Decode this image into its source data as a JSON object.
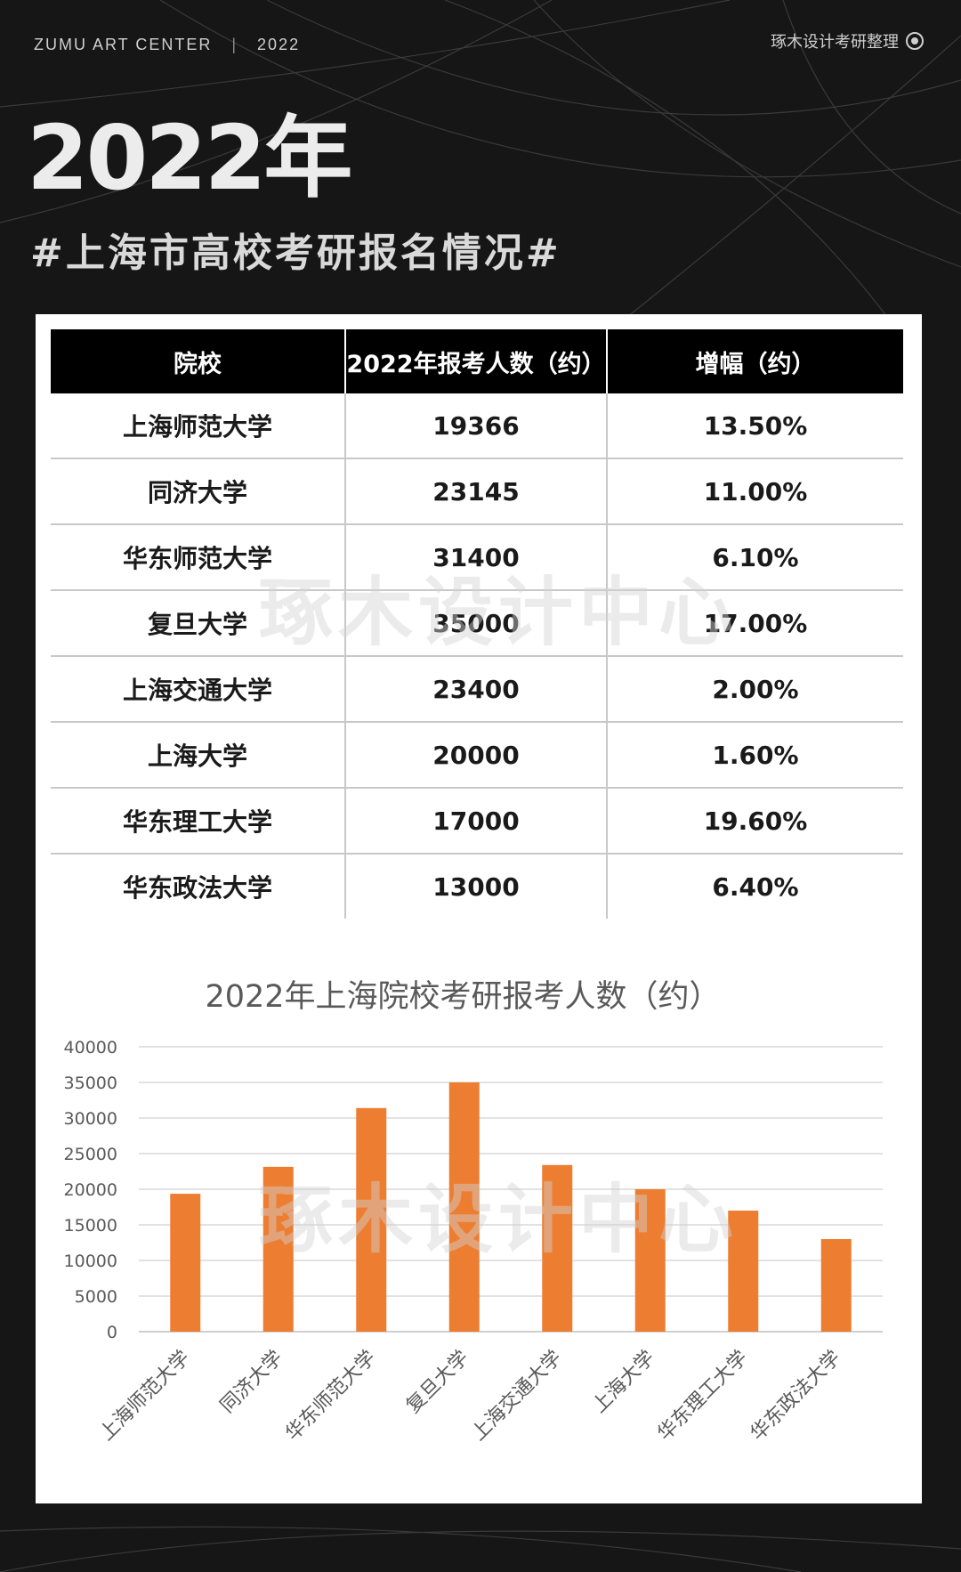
{
  "header": {
    "brand": "ZUMU ART CENTER",
    "separator": "|",
    "year": "2022",
    "organizer": "琢木设计考研整理",
    "headline": "2022年",
    "subtitle": "#上海市高校考研报名情况#"
  },
  "table": {
    "columns": [
      "院校",
      "2022年报考人数（约）",
      "增幅（约）"
    ],
    "rows": [
      {
        "school": "上海师范大学",
        "applicants": "19366",
        "growth": "13.50%"
      },
      {
        "school": "同济大学",
        "applicants": "23145",
        "growth": "11.00%"
      },
      {
        "school": "华东师范大学",
        "applicants": "31400",
        "growth": "6.10%"
      },
      {
        "school": "复旦大学",
        "applicants": "35000",
        "growth": "17.00%"
      },
      {
        "school": "上海交通大学",
        "applicants": "23400",
        "growth": "2.00%"
      },
      {
        "school": "上海大学",
        "applicants": "20000",
        "growth": "1.60%"
      },
      {
        "school": "华东理工大学",
        "applicants": "17000",
        "growth": "19.60%"
      },
      {
        "school": "华东政法大学",
        "applicants": "13000",
        "growth": "6.40%"
      }
    ]
  },
  "watermark": "琢木设计中心",
  "chart_data": {
    "type": "bar",
    "title": "2022年上海院校考研报考人数（约）",
    "xlabel": "",
    "ylabel": "",
    "categories": [
      "上海师范大学",
      "同济大学",
      "华东师范大学",
      "复旦大学",
      "上海交通大学",
      "上海大学",
      "华东理工大学",
      "华东政法大学"
    ],
    "values": [
      19366,
      23145,
      31400,
      35000,
      23400,
      20000,
      17000,
      13000
    ],
    "ylim": [
      0,
      40000
    ],
    "yticks": [
      0,
      5000,
      10000,
      15000,
      20000,
      25000,
      30000,
      35000,
      40000
    ],
    "grid": true,
    "legend": "none",
    "bar_color": "#ED7D31"
  }
}
